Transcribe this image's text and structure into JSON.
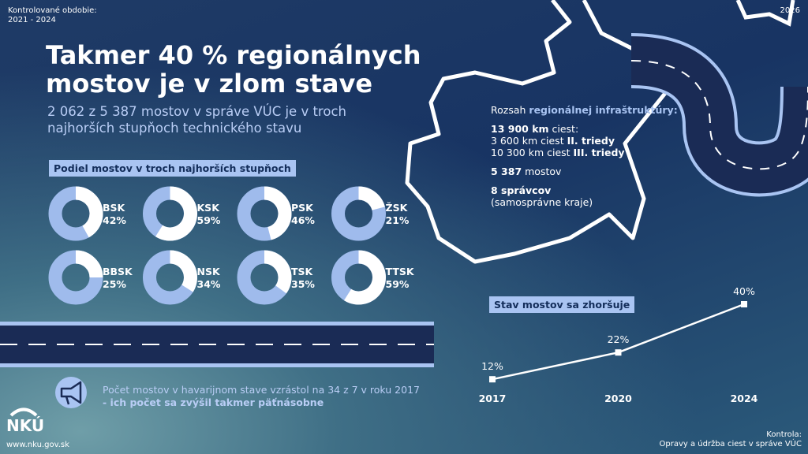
{
  "header": {
    "period_label": "Kontrolované obdobie:",
    "period": "2021 - 2024",
    "year": "2026",
    "title_line1": "Takmer 40 % regionálnych",
    "title_line2": "mostov je v zlom stave",
    "subtitle_line1": "2 062 z 5 387 mostov v správe VÚC je v troch",
    "subtitle_line2": "najhorších stupňoch technického stavu"
  },
  "donuts": {
    "title": "Podiel mostov v troch najhorších stupňoch",
    "categories": [
      "BSK",
      "KSK",
      "PSK",
      "ŽSK",
      "BBSK",
      "NSK",
      "TSK",
      "TTSK"
    ],
    "values": [
      42,
      59,
      46,
      21,
      25,
      34,
      35,
      59
    ],
    "value_labels": [
      "42%",
      "59%",
      "46%",
      "21%",
      "25%",
      "34%",
      "35%",
      "59%"
    ],
    "colors": {
      "share": "#ffffff",
      "rest": "#9fbbec"
    }
  },
  "infrastructure": {
    "intro": "Rozsah ",
    "intro_bold": "regionálnej infraštruktúry:",
    "roads_bold": "13 900 km",
    "roads": " ciest:",
    "class2": "3 600 km ciest ",
    "class2_bold": "II. triedy",
    "class3": "10 300 km ciest ",
    "class3_bold": "III. triedy",
    "bridges_bold": "5 387",
    "bridges": " mostov",
    "managers_bold": "8 správcov",
    "managers_note": "(samosprávne kraje)"
  },
  "trend": {
    "title": "Stav mostov sa zhoršuje",
    "categories": [
      "2017",
      "2020",
      "2024"
    ],
    "values": [
      12,
      22,
      40
    ],
    "value_labels": [
      "12%",
      "22%",
      "40%"
    ],
    "color": "#ffffff"
  },
  "callout": {
    "text": "Počet mostov v havarijnom stave vzrástol na 34 z 7 v roku 2017",
    "text_bold": "- ich počet sa zvýšil takmer päťnásobne"
  },
  "footer": {
    "logo": "NKÚ",
    "url": "www.nku.gov.sk",
    "control_label": "Kontrola:",
    "control": "Opravy a údržba ciest v správe VÚC"
  }
}
